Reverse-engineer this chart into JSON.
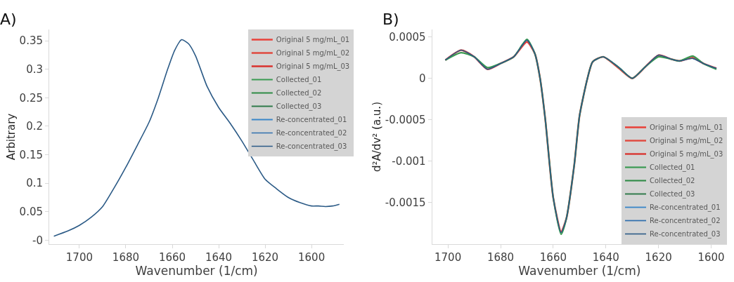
{
  "chart_data": [
    {
      "type": "line",
      "title": "A)",
      "xlabel": "Wavenumber (1/cm)",
      "ylabel": "Arbitrary",
      "x": [
        1711,
        1705,
        1700,
        1695,
        1690,
        1685,
        1680,
        1675,
        1670,
        1666,
        1662,
        1659,
        1656,
        1653,
        1650,
        1645,
        1640,
        1635,
        1630,
        1625,
        1620,
        1615,
        1610,
        1605,
        1600,
        1597,
        1594,
        1591,
        1588
      ],
      "xlim": [
        1713,
        1586
      ],
      "xticks": [
        1700,
        1680,
        1660,
        1640,
        1620,
        1600
      ],
      "ylim": [
        -0.007,
        0.37
      ],
      "yticks": [
        {
          "value": 0,
          "label": "-0"
        },
        0.05,
        0.1,
        0.15,
        0.2,
        0.25,
        0.3,
        0.35
      ],
      "legend": "top right",
      "line_style": "solid",
      "marker": "none",
      "series": [
        {
          "name": "Original 5 mg/mL_01",
          "color": "#e8423a",
          "values": [
            null,
            null,
            null,
            null,
            null,
            null,
            null,
            null,
            null,
            null,
            null,
            null,
            null,
            null,
            null,
            null,
            null,
            null,
            null,
            null,
            null,
            null,
            null,
            null,
            null,
            null,
            null,
            null,
            null
          ]
        },
        {
          "name": "Original 5 mg/mL_02",
          "color": "#e04a3f",
          "values": [
            null,
            null,
            null,
            null,
            null,
            null,
            null,
            null,
            null,
            null,
            null,
            null,
            null,
            null,
            null,
            null,
            null,
            null,
            null,
            null,
            null,
            null,
            null,
            null,
            null,
            null,
            null,
            null,
            null
          ]
        },
        {
          "name": "Original 5 mg/mL_03",
          "color": "#d9322e",
          "values": [
            null,
            null,
            null,
            null,
            null,
            null,
            null,
            null,
            null,
            null,
            null,
            null,
            null,
            null,
            null,
            null,
            null,
            null,
            null,
            null,
            null,
            null,
            null,
            null,
            null,
            null,
            null,
            null,
            null
          ]
        },
        {
          "name": "Collected_01",
          "color": "#3a9a52",
          "values": [
            null,
            null,
            null,
            null,
            null,
            null,
            null,
            null,
            null,
            null,
            null,
            null,
            null,
            null,
            null,
            null,
            null,
            null,
            null,
            null,
            null,
            null,
            null,
            null,
            null,
            null,
            null,
            null,
            null
          ]
        },
        {
          "name": "Collected_02",
          "color": "#2e8b46",
          "values": [
            null,
            null,
            null,
            null,
            null,
            null,
            null,
            null,
            null,
            null,
            null,
            null,
            null,
            null,
            null,
            null,
            null,
            null,
            null,
            null,
            null,
            null,
            null,
            null,
            null,
            null,
            null,
            null,
            null
          ]
        },
        {
          "name": "Collected_03",
          "color": "#2f7a4a",
          "values": [
            null,
            null,
            null,
            null,
            null,
            null,
            null,
            null,
            null,
            null,
            null,
            null,
            null,
            null,
            null,
            null,
            null,
            null,
            null,
            null,
            null,
            null,
            null,
            null,
            null,
            null,
            null,
            null,
            null
          ]
        },
        {
          "name": "Re-concentrated_01",
          "color": "#3a86c8",
          "values": [
            null,
            null,
            null,
            null,
            null,
            null,
            null,
            null,
            null,
            null,
            null,
            null,
            null,
            null,
            null,
            null,
            null,
            null,
            null,
            null,
            null,
            null,
            null,
            null,
            null,
            null,
            null,
            null,
            null
          ]
        },
        {
          "name": "Re-concentrated_02",
          "color": "#2f6fae",
          "values": [
            null,
            null,
            null,
            null,
            null,
            null,
            null,
            null,
            null,
            null,
            null,
            null,
            null,
            null,
            null,
            null,
            null,
            null,
            null,
            null,
            null,
            null,
            null,
            null,
            null,
            null,
            null,
            null,
            null
          ]
        },
        {
          "name": "Re-concentrated_03",
          "color": "#2b5a86",
          "values": [
            0.007,
            0.016,
            0.026,
            0.04,
            0.059,
            0.092,
            0.128,
            0.167,
            0.207,
            0.25,
            0.3,
            0.333,
            0.352,
            0.345,
            0.324,
            0.27,
            0.233,
            0.205,
            0.174,
            0.14,
            0.107,
            0.09,
            0.075,
            0.066,
            0.06,
            0.06,
            0.059,
            0.06,
            0.063
          ]
        }
      ]
    },
    {
      "type": "line",
      "title": "B)",
      "xlabel": "Wavenumber (1/cm)",
      "ylabel": "d²A/dv² (a.u.)",
      "x": [
        1701,
        1695,
        1690,
        1685,
        1680,
        1675,
        1670,
        1667,
        1665,
        1663,
        1660,
        1657,
        1655,
        1652,
        1650,
        1647,
        1645,
        1641,
        1635,
        1630,
        1625,
        1620,
        1615,
        1612,
        1607,
        1603,
        1598
      ],
      "xlim": [
        1706,
        1594
      ],
      "xticks": [
        1700,
        1680,
        1660,
        1640,
        1620,
        1600
      ],
      "ylim": [
        -0.002,
        0.00059
      ],
      "yticks": [
        0.0005,
        0,
        -0.0005,
        -0.001,
        -0.0015
      ],
      "legend": "bottom right",
      "line_style": "solid",
      "marker": "none",
      "series": [
        {
          "name": "Original 5 mg/mL_01",
          "color": "#e8423a",
          "values": [
            0.00022,
            0.00034,
            0.00026,
            0.00011,
            0.00018,
            0.00026,
            0.00044,
            0.0003,
            0,
            -0.0005,
            -0.00144,
            -0.00185,
            -0.00169,
            -0.00104,
            -0.00045,
            0,
            0.0002,
            0.00026,
            0.00012,
            0,
            0.00014,
            0.00028,
            0.00023,
            0.00021,
            0.00025,
            0.00018,
            0.00012
          ]
        },
        {
          "name": "Original 5 mg/mL_02",
          "color": "#e04a3f",
          "values": [
            null,
            null,
            null,
            null,
            null,
            null,
            null,
            null,
            null,
            null,
            null,
            null,
            null,
            null,
            null,
            null,
            null,
            null,
            null,
            null,
            null,
            null,
            null,
            null,
            null,
            null,
            null
          ]
        },
        {
          "name": "Original 5 mg/mL_03",
          "color": "#d9322e",
          "values": [
            null,
            null,
            null,
            null,
            null,
            null,
            null,
            null,
            null,
            null,
            null,
            null,
            null,
            null,
            null,
            null,
            null,
            null,
            null,
            null,
            null,
            null,
            null,
            null,
            null,
            null,
            null
          ]
        },
        {
          "name": "Collected_01",
          "color": "#3a9a52",
          "values": [
            0.00022,
            0.00031,
            0.00026,
            0.00013,
            0.00018,
            0.00026,
            0.00047,
            0.0003,
            0,
            -0.0005,
            -0.00144,
            -0.00188,
            -0.00169,
            -0.00104,
            -0.00045,
            0,
            0.0002,
            0.00026,
            0.00013,
            0,
            0.00014,
            0.00026,
            0.00023,
            0.00021,
            0.00027,
            0.00018,
            0.00011
          ]
        },
        {
          "name": "Collected_02",
          "color": "#2e8b46",
          "values": [
            null,
            null,
            null,
            null,
            null,
            null,
            null,
            null,
            null,
            null,
            null,
            null,
            null,
            null,
            null,
            null,
            null,
            null,
            null,
            null,
            null,
            null,
            null,
            null,
            null,
            null,
            null
          ]
        },
        {
          "name": "Collected_03",
          "color": "#2f7a4a",
          "values": [
            null,
            null,
            null,
            null,
            null,
            null,
            null,
            null,
            null,
            null,
            null,
            null,
            null,
            null,
            null,
            null,
            null,
            null,
            null,
            null,
            null,
            null,
            null,
            null,
            null,
            null,
            null
          ]
        },
        {
          "name": "Re-concentrated_01",
          "color": "#3a86c8",
          "values": [
            null,
            null,
            null,
            null,
            null,
            null,
            null,
            null,
            null,
            null,
            null,
            null,
            null,
            null,
            null,
            null,
            null,
            null,
            null,
            null,
            null,
            null,
            null,
            null,
            null,
            null,
            null
          ]
        },
        {
          "name": "Re-concentrated_02",
          "color": "#2f6fae",
          "values": [
            null,
            null,
            null,
            null,
            null,
            null,
            null,
            null,
            null,
            null,
            null,
            null,
            null,
            null,
            null,
            null,
            null,
            null,
            null,
            null,
            null,
            null,
            null,
            null,
            null,
            null,
            null
          ]
        },
        {
          "name": "Re-concentrated_03",
          "color": "#2b5a86",
          "values": [
            0.00022,
            0.00034,
            0.00026,
            0.00011,
            0.00018,
            0.00026,
            0.00046,
            0.0003,
            0,
            -0.0005,
            -0.00144,
            -0.00186,
            -0.00169,
            -0.00104,
            -0.00045,
            0,
            0.0002,
            0.00026,
            0.00013,
            0,
            0.00014,
            0.00028,
            0.00023,
            0.00021,
            0.00024,
            0.00018,
            0.00012
          ]
        }
      ]
    }
  ]
}
